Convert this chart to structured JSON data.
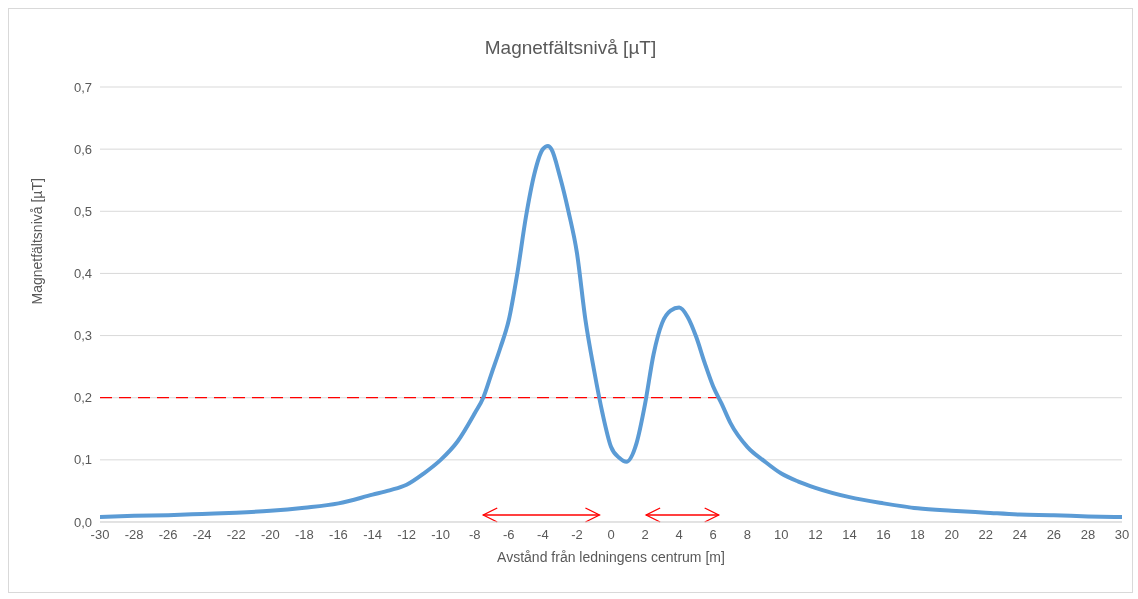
{
  "chart_data": {
    "type": "line",
    "title": "Magnetfältsnivå [µT]",
    "xlabel": "Avstånd från ledningens centrum [m]",
    "ylabel": "Magnetfältsnivå [µT]",
    "x": [
      -30,
      -28,
      -26,
      -24,
      -22,
      -20,
      -18,
      -16,
      -14,
      -13,
      -12,
      -11,
      -10,
      -9,
      -8,
      -7.5,
      -7,
      -6.5,
      -6,
      -5.5,
      -5,
      -4.5,
      -4,
      -3.7,
      -3.5,
      -3,
      -2.5,
      -2,
      -1.5,
      -1,
      -0.5,
      0,
      0.5,
      0.9,
      1.5,
      2,
      2.5,
      3,
      3.5,
      4,
      4.5,
      5,
      5.5,
      6,
      6.5,
      7,
      8,
      9,
      10,
      11,
      12,
      14,
      16,
      18,
      20,
      22,
      24,
      26,
      28,
      30
    ],
    "series": [
      {
        "color": "#5b9bd5",
        "values": [
          0.008,
          0.01,
          0.011,
          0.013,
          0.015,
          0.018,
          0.023,
          0.03,
          0.044,
          0.051,
          0.06,
          0.078,
          0.1,
          0.13,
          0.175,
          0.2,
          0.24,
          0.28,
          0.325,
          0.4,
          0.49,
          0.56,
          0.6,
          0.605,
          0.6,
          0.556,
          0.5,
          0.433,
          0.325,
          0.245,
          0.175,
          0.121,
          0.103,
          0.097,
          0.127,
          0.19,
          0.27,
          0.32,
          0.34,
          0.345,
          0.33,
          0.298,
          0.256,
          0.218,
          0.19,
          0.16,
          0.121,
          0.098,
          0.078,
          0.065,
          0.055,
          0.04,
          0.03,
          0.022,
          0.018,
          0.015,
          0.012,
          0.011,
          0.009,
          0.008
        ]
      }
    ],
    "xlim": [
      -30,
      30
    ],
    "xticks": [
      -30,
      -28,
      -26,
      -24,
      -22,
      -20,
      -18,
      -16,
      -14,
      -12,
      -10,
      -8,
      -6,
      -4,
      -2,
      0,
      2,
      4,
      6,
      8,
      10,
      12,
      14,
      16,
      18,
      20,
      22,
      24,
      26,
      28,
      30
    ],
    "ylim": [
      0,
      0.7
    ],
    "yticks": [
      {
        "value": 0,
        "label": "0,0"
      },
      {
        "value": 0.1,
        "label": "0,1"
      },
      {
        "value": 0.2,
        "label": "0,2"
      },
      {
        "value": 0.3,
        "label": "0,3"
      },
      {
        "value": 0.4,
        "label": "0,4"
      },
      {
        "value": 0.5,
        "label": "0,5"
      },
      {
        "value": 0.6,
        "label": "0,6"
      },
      {
        "value": 0.7,
        "label": "0,7"
      }
    ],
    "ref_lines": [
      {
        "axis": "y",
        "value": 0.2,
        "color": "#ff0000",
        "line_style": "dashed"
      }
    ],
    "grid": "y",
    "marker": "none",
    "line_style": "solid"
  }
}
